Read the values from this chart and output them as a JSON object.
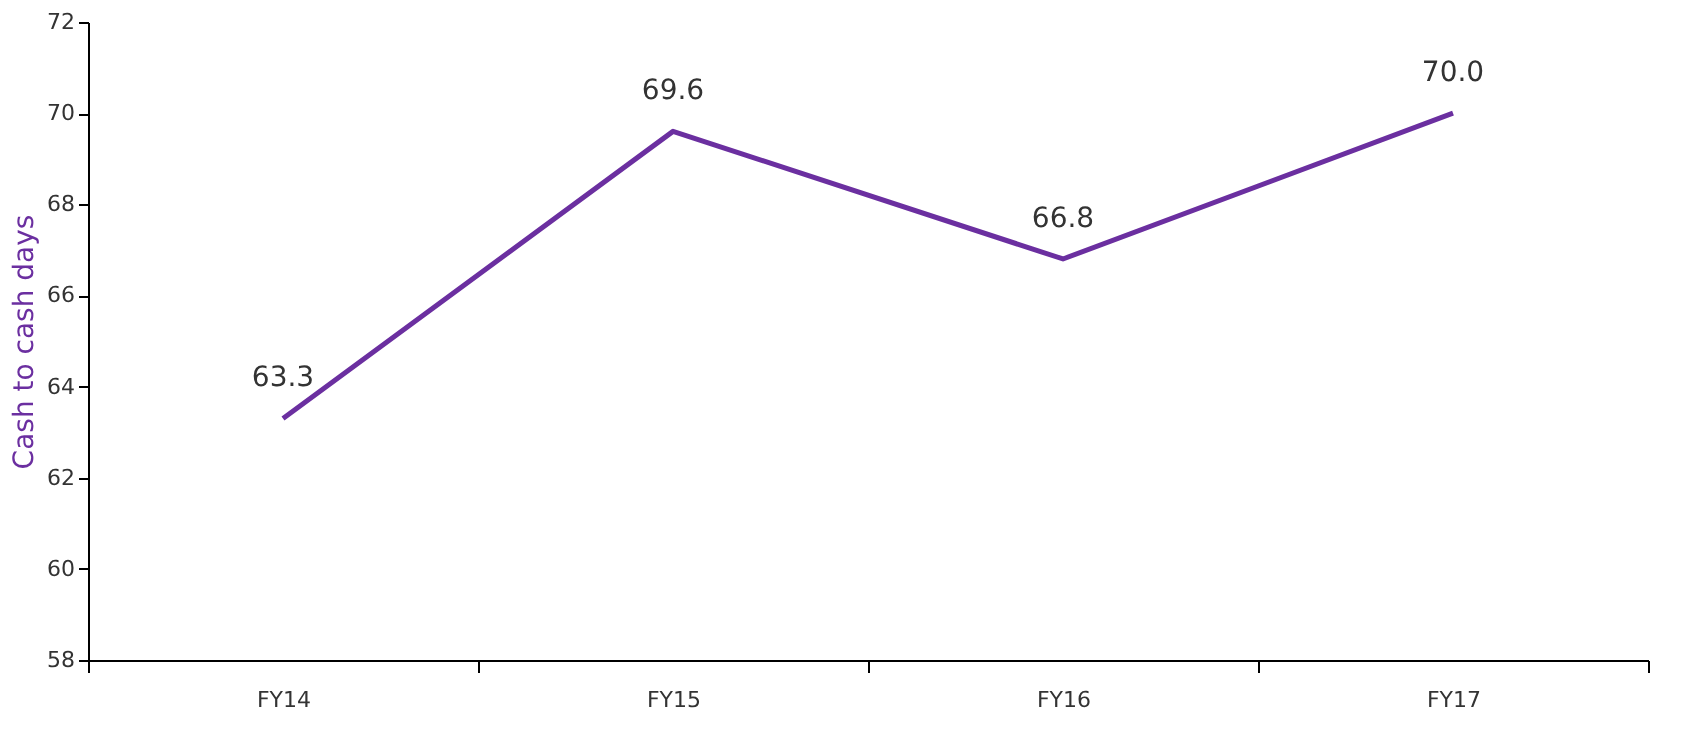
{
  "chart_data": {
    "type": "line",
    "ylabel": "Cash to cash days",
    "categories": [
      "FY14",
      "FY15",
      "FY16",
      "FY17"
    ],
    "series": [
      {
        "color": "#6b2fa0",
        "values": [
          63.3,
          69.6,
          66.8,
          70.0
        ],
        "value_labels": [
          "63.3",
          "69.6",
          "66.8",
          "70.0"
        ]
      }
    ],
    "ylim": [
      58,
      72
    ],
    "yticks": [
      58,
      60,
      62,
      64,
      66,
      68,
      70,
      72
    ],
    "grid": false,
    "marker": "none",
    "line_style": "solid"
  }
}
